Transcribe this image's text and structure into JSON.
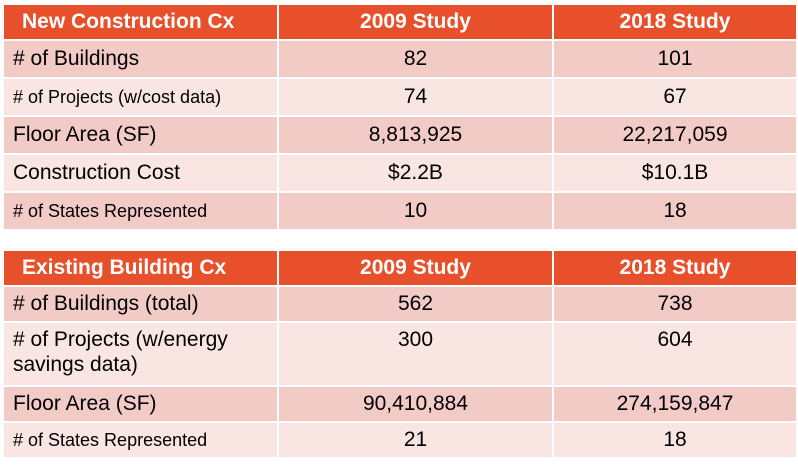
{
  "new_construction": {
    "headers": [
      "New Construction Cx",
      "2009 Study",
      "2018 Study"
    ],
    "rows": [
      [
        "# of Buildings",
        "82",
        "101"
      ],
      [
        "# of Projects (w/cost data)",
        "74",
        "67"
      ],
      [
        "Floor Area (SF)",
        "8,813,925",
        "22,217,059"
      ],
      [
        "Construction Cost",
        "$2.2B",
        "$10.1B"
      ],
      [
        "# of States Represented",
        "10",
        "18"
      ]
    ]
  },
  "existing_building": {
    "headers": [
      "Existing Building Cx",
      "2009 Study",
      "2018 Study"
    ],
    "rows": [
      [
        "# of Buildings (total)",
        "562",
        "738"
      ],
      [
        "# of Projects (w/energy savings data)",
        "300",
        "604"
      ],
      [
        "Floor Area (SF)",
        "90,410,884",
        "274,159,847"
      ],
      [
        "# of States Represented",
        "21",
        "18"
      ]
    ]
  },
  "colors": {
    "header_bg": "#e7502a",
    "row_dark": "#f2cbc6",
    "row_light": "#f9e5e2"
  }
}
